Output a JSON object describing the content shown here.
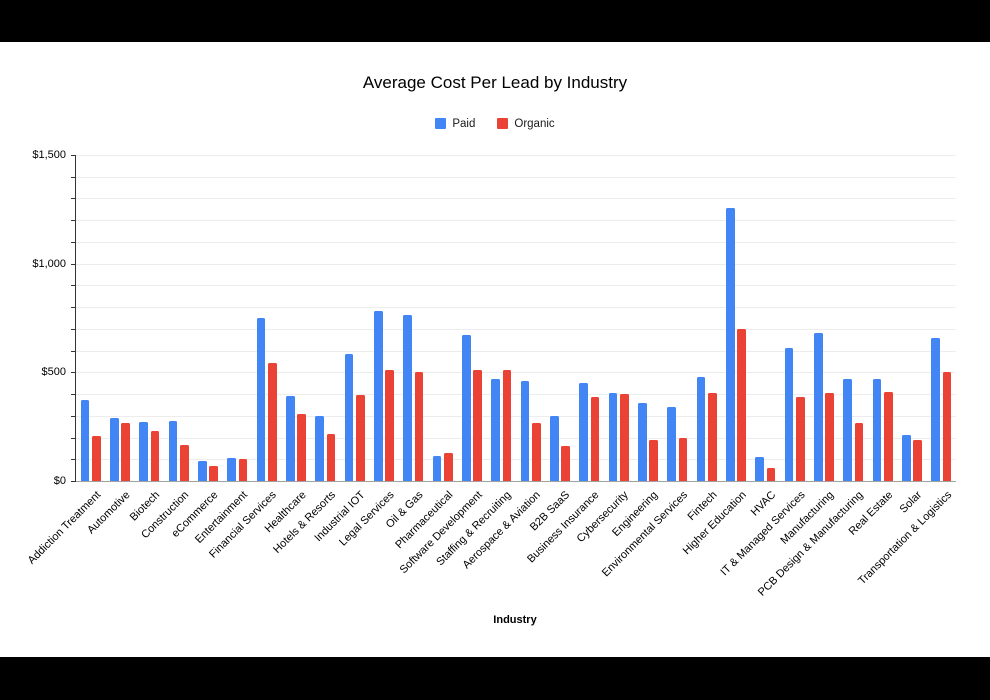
{
  "chart": {
    "title": "Average Cost Per Lead by Industry",
    "x_axis_title": "Industry"
  },
  "chart_data": {
    "type": "bar",
    "title": "Average Cost Per Lead by Industry",
    "xlabel": "Industry",
    "ylabel": "",
    "ylim": [
      0,
      1500
    ],
    "y_major_tick_interval": 500,
    "y_minor_tick_interval": 100,
    "y_tick_values": [
      0,
      500,
      1000,
      1500
    ],
    "y_tick_labels": [
      "$0",
      "$500",
      "$1,000",
      "$1,500"
    ],
    "legend_position": "top",
    "grid": true,
    "categories": [
      "Addiction Treatment",
      "Automotive",
      "Biotech",
      "Construction",
      "eCommerce",
      "Entertainment",
      "Financial Services",
      "Healthcare",
      "Hotels & Resorts",
      "Industrial IOT",
      "Legal Services",
      "Oil & Gas",
      "Pharmaceutical",
      "Software Development",
      "Staffing & Recruiting",
      "Aerospace & Aviation",
      "B2B SaaS",
      "Business Insurance",
      "Cybersecurity",
      "Engineering",
      "Environmental Services",
      "Fintech",
      "Higher Education",
      "HVAC",
      "IT & Managed Services",
      "Manufacturing",
      "PCB Design & Manufacturing",
      "Real Estate",
      "Solar",
      "Transportation & Logistics"
    ],
    "series": [
      {
        "name": "Paid",
        "color": "#4285F4",
        "values": [
          375,
          290,
          270,
          275,
          90,
          105,
          750,
          390,
          300,
          585,
          780,
          765,
          115,
          670,
          470,
          460,
          300,
          450,
          405,
          360,
          340,
          480,
          1255,
          110,
          610,
          680,
          470,
          470,
          210,
          660
        ]
      },
      {
        "name": "Organic",
        "color": "#EA4335",
        "values": [
          205,
          265,
          230,
          165,
          70,
          100,
          545,
          310,
          215,
          395,
          510,
          500,
          130,
          510,
          510,
          265,
          160,
          385,
          400,
          190,
          200,
          405,
          700,
          60,
          385,
          405,
          265,
          410,
          190,
          500
        ]
      }
    ]
  }
}
